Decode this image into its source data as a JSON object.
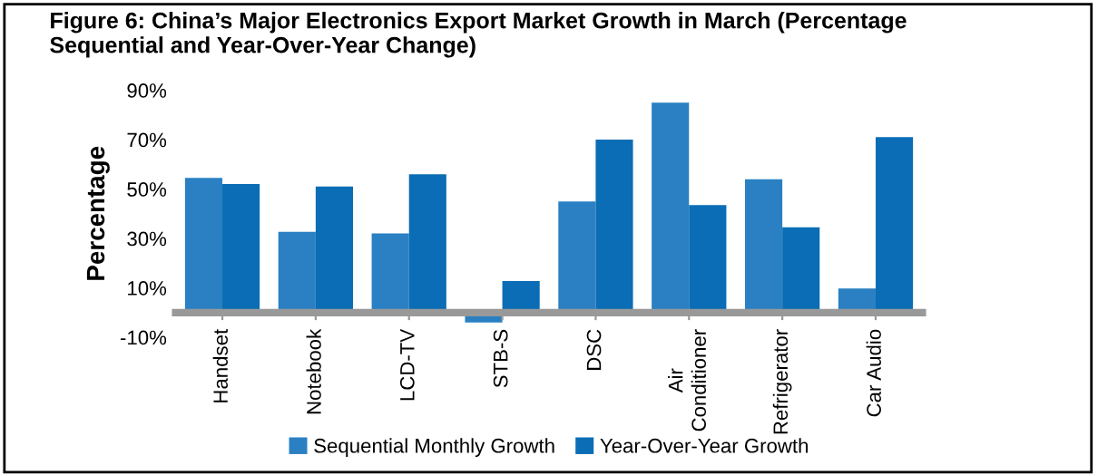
{
  "chart_data": {
    "type": "bar",
    "title": "Figure 6: China’s Major Electronics Export Market Growth in March (Percentage\nSequential and Year-Over-Year Change)",
    "ylabel": "Percentage",
    "categories": [
      "Handset",
      "Notebook",
      "LCD-TV",
      "STB-S",
      "DSC",
      "Air\nConditioner",
      "Refrigerator",
      "Car Audio"
    ],
    "series": [
      {
        "name": "Sequential Monthly Growth",
        "color": "#2a80c2",
        "values": [
          54.5,
          32.7,
          32,
          -4,
          45,
          85,
          54,
          9.7
        ]
      },
      {
        "name": "Year-Over-Year Growth",
        "color": "#0a6db5",
        "values": [
          52,
          51,
          56,
          12.8,
          70,
          43.5,
          34.5,
          71
        ]
      }
    ],
    "ylim": [
      -10,
      90
    ],
    "yticks": [
      {
        "value": -10,
        "label": "-10%"
      },
      {
        "value": 10,
        "label": "10%"
      },
      {
        "value": 30,
        "label": "30%"
      },
      {
        "value": 50,
        "label": "50%"
      },
      {
        "value": 70,
        "label": "70%"
      },
      {
        "value": 90,
        "label": "90%"
      }
    ],
    "legend": "bottom"
  }
}
